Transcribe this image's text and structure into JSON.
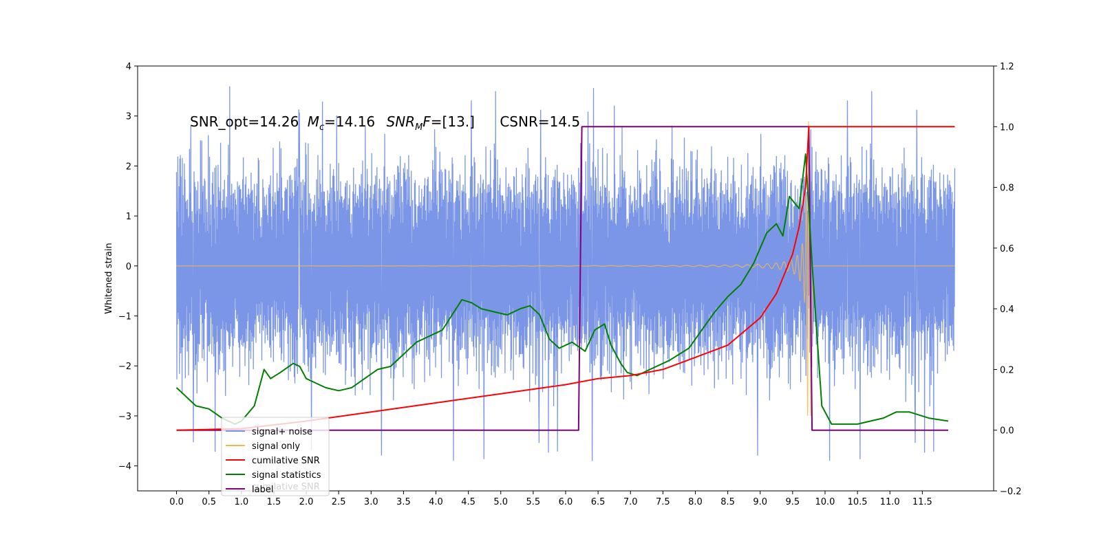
{
  "chart_data": {
    "type": "line",
    "ylabel": "Whitened strain",
    "annotation": {
      "snr_opt": "SNR_opt=14.26",
      "mc_sym": "M",
      "mc_sub": "c",
      "mc_val": "=14.16",
      "snrmf_sym": "SNR",
      "snrmf_sub": "M",
      "snrmf_tail": "F",
      "snrmf_val": "=[13.]",
      "csnr": "CSNR=14.5"
    },
    "x_ticks": [
      "0.0",
      "0.5",
      "1.0",
      "1.5",
      "2.0",
      "2.5",
      "3.0",
      "3.5",
      "4.0",
      "4.5",
      "5.0",
      "5.5",
      "6.0",
      "6.5",
      "7.0",
      "7.5",
      "8.0",
      "8.5",
      "9.0",
      "9.5",
      "10.0",
      "10.5",
      "11.0",
      "11.5"
    ],
    "xlim": [
      -0.6,
      12.6
    ],
    "y_left": {
      "lim": [
        -4.5,
        4.0
      ],
      "ticks": [
        "4",
        "3",
        "2",
        "1",
        "0",
        "−1",
        "−2",
        "−3",
        "−4"
      ]
    },
    "y_right": {
      "lim": [
        -0.2,
        1.2
      ],
      "ticks": [
        "1.2",
        "1.0",
        "0.8",
        "0.6",
        "0.4",
        "0.2",
        "0.0",
        "−0.2"
      ]
    },
    "legend": {
      "placement": "lower-left",
      "entries": [
        {
          "label": "signal+ noise",
          "color": "#7b96e6"
        },
        {
          "label": "signal only",
          "color": "#f5b94c"
        },
        {
          "label": "cumilative SNR",
          "color": "#ff0000"
        },
        {
          "label": "signal statistics",
          "color": "#008000"
        },
        {
          "label": "label",
          "color": "#800080"
        }
      ],
      "ghost_label": "cumilative SNR"
    },
    "series": [
      {
        "name": "signal+ noise",
        "axis": "left",
        "color": "#7b96e6",
        "x_range": [
          0.0,
          12.0
        ],
        "envelope_typical": [
          -2.0,
          2.2
        ],
        "peak_extremes": [
          -4.1,
          3.6
        ]
      },
      {
        "name": "signal only",
        "axis": "left",
        "color": "#f5b94c",
        "chirp_start": 2.0,
        "merger_time": 9.75,
        "peak_amplitude": 3.0
      },
      {
        "name": "cumilative SNR",
        "axis": "right",
        "color": "#ff0000",
        "x": [
          0.0,
          1.0,
          2.0,
          3.0,
          4.0,
          5.0,
          6.0,
          6.5,
          7.0,
          7.5,
          8.0,
          8.5,
          9.0,
          9.25,
          9.5,
          9.6,
          9.7,
          9.75,
          9.8,
          12.0
        ],
        "y": [
          0.0,
          0.005,
          0.03,
          0.06,
          0.09,
          0.12,
          0.15,
          0.17,
          0.18,
          0.2,
          0.24,
          0.28,
          0.37,
          0.45,
          0.58,
          0.67,
          0.8,
          1.0,
          1.0,
          1.0
        ]
      },
      {
        "name": "signal statistics",
        "axis": "right",
        "color": "#008000",
        "x": [
          0.0,
          0.1,
          0.2,
          0.3,
          0.5,
          0.7,
          0.9,
          1.0,
          1.2,
          1.35,
          1.45,
          1.6,
          1.8,
          1.9,
          2.0,
          2.1,
          2.3,
          2.5,
          2.7,
          2.9,
          3.1,
          3.3,
          3.5,
          3.7,
          3.9,
          4.1,
          4.4,
          4.55,
          4.7,
          4.9,
          5.1,
          5.3,
          5.45,
          5.6,
          5.75,
          5.9,
          6.1,
          6.3,
          6.45,
          6.6,
          6.7,
          6.85,
          6.95,
          7.1,
          7.3,
          7.6,
          7.9,
          8.1,
          8.3,
          8.5,
          8.7,
          8.9,
          9.1,
          9.25,
          9.35,
          9.45,
          9.6,
          9.7,
          9.8,
          9.95,
          10.1,
          10.5,
          10.9,
          11.1,
          11.3,
          11.6,
          11.9
        ],
        "y": [
          0.14,
          0.12,
          0.1,
          0.08,
          0.07,
          0.04,
          0.02,
          0.03,
          0.08,
          0.2,
          0.17,
          0.19,
          0.22,
          0.21,
          0.17,
          0.16,
          0.14,
          0.13,
          0.14,
          0.17,
          0.2,
          0.21,
          0.25,
          0.29,
          0.31,
          0.33,
          0.43,
          0.42,
          0.4,
          0.39,
          0.38,
          0.4,
          0.41,
          0.38,
          0.3,
          0.27,
          0.29,
          0.26,
          0.33,
          0.35,
          0.28,
          0.22,
          0.19,
          0.18,
          0.2,
          0.23,
          0.27,
          0.33,
          0.39,
          0.44,
          0.48,
          0.55,
          0.65,
          0.68,
          0.64,
          0.77,
          0.73,
          0.91,
          0.55,
          0.08,
          0.02,
          0.02,
          0.04,
          0.06,
          0.06,
          0.04,
          0.03
        ]
      },
      {
        "name": "label",
        "axis": "right",
        "color": "#800080",
        "x": [
          0.0,
          6.2,
          6.25,
          9.75,
          9.8,
          11.9
        ],
        "y": [
          0.0,
          0.0,
          1.0,
          1.0,
          0.0,
          0.0
        ]
      }
    ]
  }
}
